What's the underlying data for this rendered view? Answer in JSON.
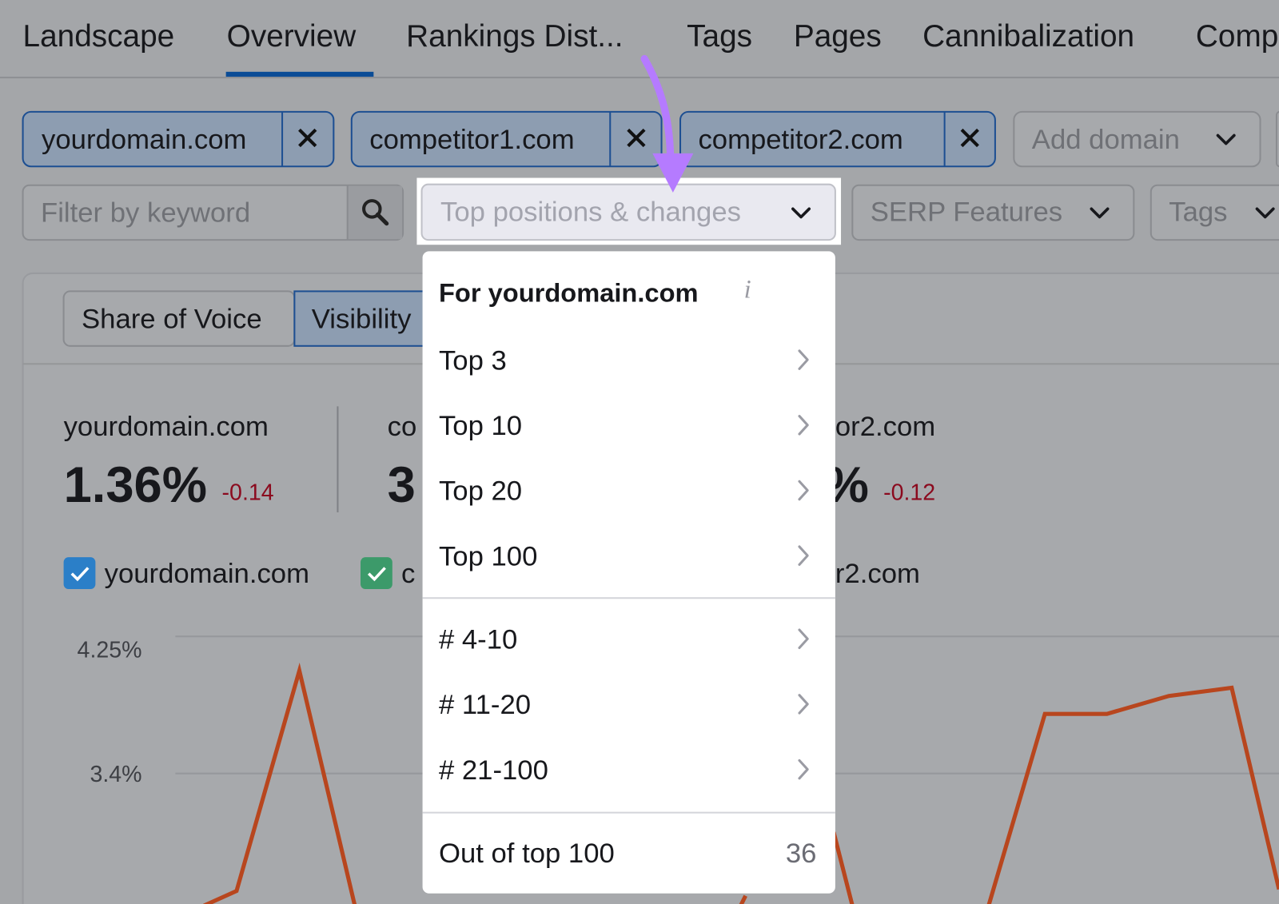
{
  "tabs": [
    "Landscape",
    "Overview",
    "Rankings Dist...",
    "Tags",
    "Pages",
    "Cannibalization",
    "Comp"
  ],
  "domains": [
    "yourdomain.com",
    "competitor1.com",
    "competitor2.com"
  ],
  "add_domain": "Add domain",
  "filters": {
    "keyword_placeholder": "Filter by keyword",
    "positions": "Top positions & changes",
    "serp": "SERP Features",
    "tags": "Tags"
  },
  "view_toggle": [
    "Share of Voice",
    "Visibility"
  ],
  "stats": [
    {
      "domain": "yourdomain.com",
      "value": "1.36%",
      "change": "-0.14"
    },
    {
      "domain": "co",
      "value": "3"
    },
    {
      "domain": "or2.com",
      "value": "%",
      "change": "-0.12"
    }
  ],
  "legend": [
    "yourdomain.com",
    "c",
    "r2.com"
  ],
  "chart": {
    "yticks": [
      "4.25%",
      "3.4%"
    ]
  },
  "dropdown": {
    "heading": "For yourdomain.com",
    "groups": [
      [
        "Top 3",
        "Top 10",
        "Top 20",
        "Top 100"
      ],
      [
        "# 4-10",
        "# 11-20",
        "# 21-100"
      ]
    ],
    "footer": {
      "label": "Out of top 100",
      "count": 36
    }
  }
}
